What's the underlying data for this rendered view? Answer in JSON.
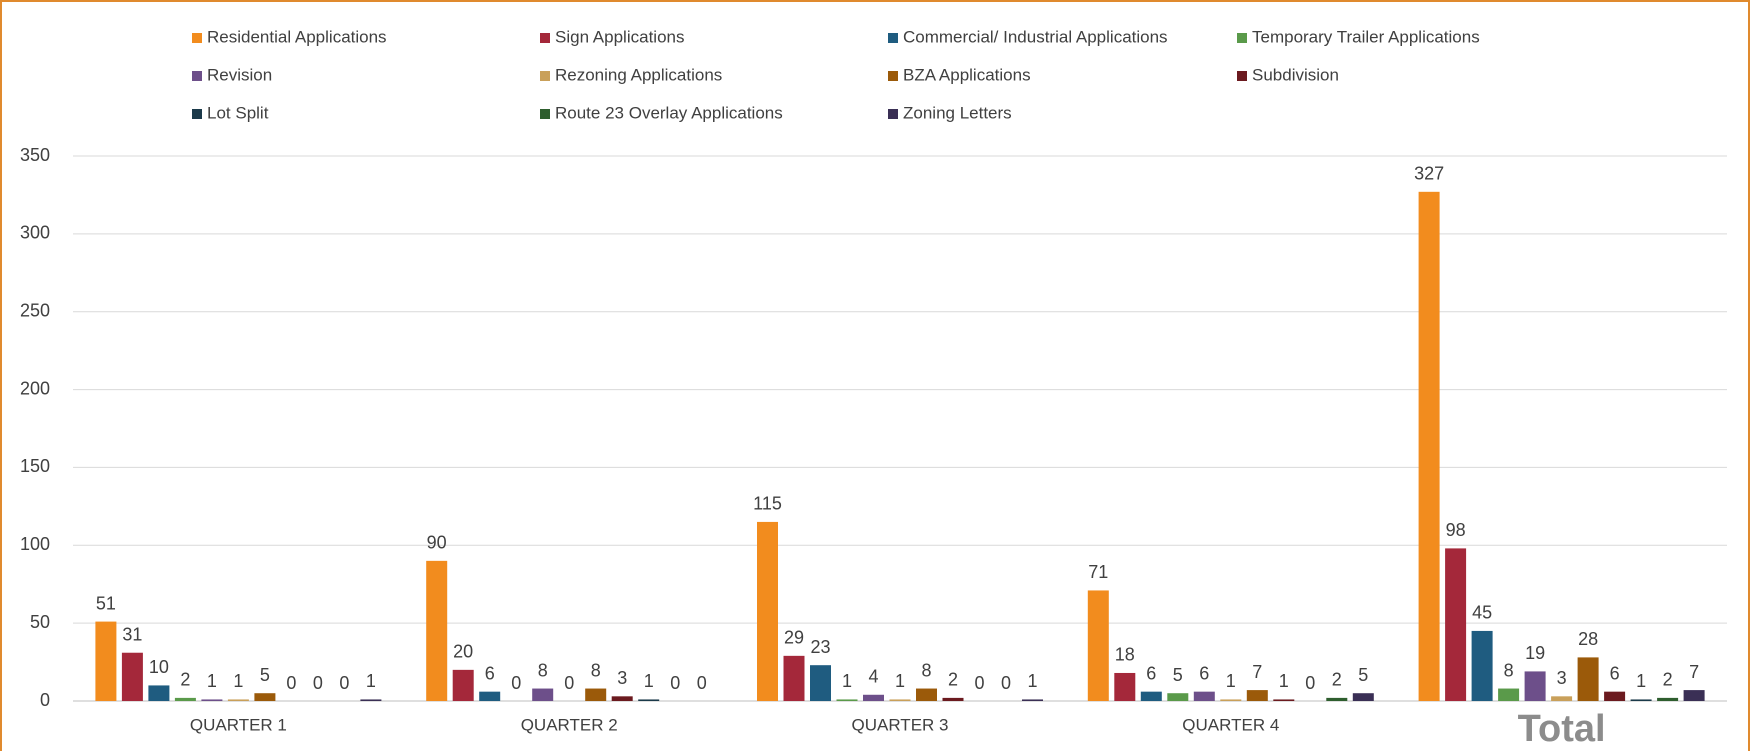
{
  "chart_data": {
    "type": "bar",
    "categories": [
      "QUARTER 1",
      "QUARTER 2",
      "QUARTER 3",
      "QUARTER 4",
      "Total"
    ],
    "series": [
      {
        "name": "Residential Applications",
        "color": "#f28c1e",
        "values": [
          51,
          90,
          115,
          71,
          327
        ]
      },
      {
        "name": "Sign Applications",
        "color": "#a4283a",
        "values": [
          31,
          20,
          29,
          18,
          98
        ]
      },
      {
        "name": "Commercial/ Industrial Applications",
        "color": "#1f5c80",
        "values": [
          10,
          6,
          23,
          6,
          45
        ]
      },
      {
        "name": "Temporary Trailer Applications",
        "color": "#5a9a4a",
        "values": [
          2,
          0,
          1,
          5,
          8
        ]
      },
      {
        "name": "Revision",
        "color": "#6d4f8a",
        "values": [
          1,
          8,
          4,
          6,
          19
        ]
      },
      {
        "name": "Rezoning Applications",
        "color": "#c9a05a",
        "values": [
          1,
          0,
          1,
          1,
          3
        ]
      },
      {
        "name": "BZA Applications",
        "color": "#9b5a0a",
        "values": [
          5,
          8,
          8,
          7,
          28
        ]
      },
      {
        "name": "Subdivision",
        "color": "#6b1a1f",
        "values": [
          0,
          3,
          2,
          1,
          6
        ]
      },
      {
        "name": "Lot Split",
        "color": "#1b3a4a",
        "values": [
          0,
          1,
          0,
          0,
          1
        ]
      },
      {
        "name": "Route 23 Overlay Applications",
        "color": "#2e5e2e",
        "values": [
          0,
          0,
          0,
          2,
          2
        ]
      },
      {
        "name": "Zoning Letters",
        "color": "#3a2f55",
        "values": [
          1,
          0,
          1,
          5,
          7
        ]
      }
    ],
    "ylim": [
      0,
      350
    ],
    "yticks": [
      0,
      50,
      100,
      150,
      200,
      250,
      300,
      350
    ],
    "grid": true,
    "legend": "top"
  }
}
